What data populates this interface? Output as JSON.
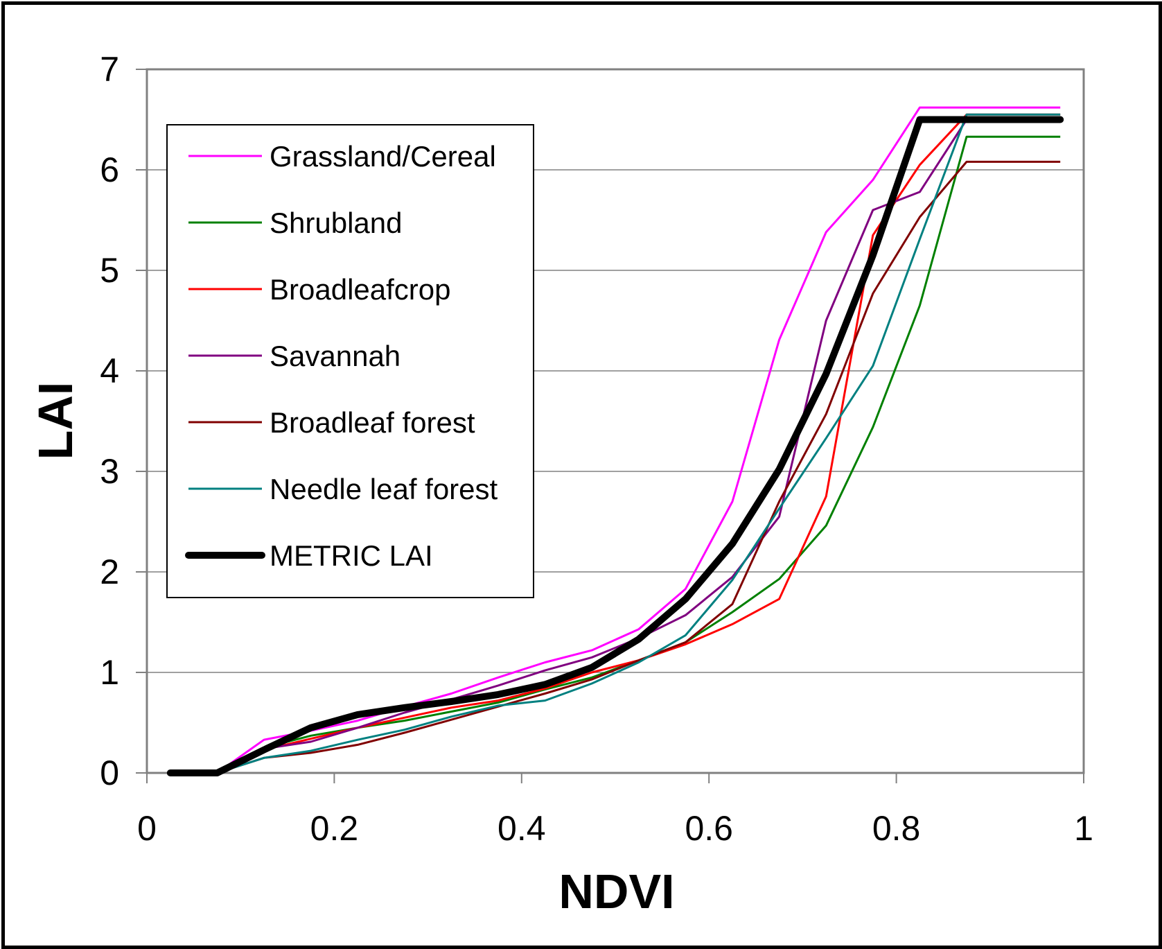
{
  "chart_data": {
    "type": "line",
    "title": "",
    "xlabel": "NDVI",
    "ylabel": "LAI",
    "xlim": [
      0,
      1
    ],
    "ylim": [
      0,
      7
    ],
    "xticks": [
      "0",
      "0.2",
      "0.4",
      "0.6",
      "0.8",
      "1"
    ],
    "yticks": [
      "0",
      "1",
      "2",
      "3",
      "4",
      "5",
      "6",
      "7"
    ],
    "grid": "horizontal",
    "legend_position": "top-left",
    "x": [
      0.025,
      0.075,
      0.125,
      0.175,
      0.225,
      0.275,
      0.325,
      0.375,
      0.425,
      0.475,
      0.525,
      0.575,
      0.625,
      0.675,
      0.725,
      0.775,
      0.825,
      0.875,
      0.925,
      0.975
    ],
    "series": [
      {
        "name": "Grassland/Cereal",
        "color": "#ff00ff",
        "width": 3,
        "values": [
          0,
          0,
          0.33,
          0.42,
          0.52,
          0.66,
          0.79,
          0.95,
          1.1,
          1.22,
          1.43,
          1.83,
          2.7,
          4.31,
          5.38,
          5.9,
          6.62,
          6.62,
          6.62,
          6.62
        ]
      },
      {
        "name": "Shrubland",
        "color": "#008000",
        "width": 3,
        "values": [
          0,
          0,
          0.25,
          0.37,
          0.45,
          0.52,
          0.61,
          0.7,
          0.83,
          0.95,
          1.12,
          1.3,
          1.6,
          1.93,
          2.46,
          3.44,
          4.65,
          6.33,
          6.33,
          6.33
        ]
      },
      {
        "name": "Broadleafcrop",
        "color": "#ff0000",
        "width": 3,
        "values": [
          0,
          0,
          0.23,
          0.34,
          0.45,
          0.55,
          0.65,
          0.72,
          0.84,
          1.0,
          1.12,
          1.28,
          1.48,
          1.73,
          2.75,
          5.35,
          6.05,
          6.55,
          6.55,
          6.55
        ]
      },
      {
        "name": "Savannah",
        "color": "#800080",
        "width": 3,
        "values": [
          0,
          0,
          0.24,
          0.31,
          0.45,
          0.6,
          0.73,
          0.87,
          1.02,
          1.15,
          1.34,
          1.57,
          1.95,
          2.55,
          4.5,
          5.6,
          5.78,
          6.5,
          6.5,
          6.5
        ]
      },
      {
        "name": "Broadleaf forest",
        "color": "#800000",
        "width": 3,
        "values": [
          0,
          0,
          0.15,
          0.2,
          0.28,
          0.4,
          0.53,
          0.66,
          0.79,
          0.93,
          1.12,
          1.3,
          1.68,
          2.7,
          3.57,
          4.77,
          5.53,
          6.08,
          6.08,
          6.08
        ]
      },
      {
        "name": "Needle leaf forest",
        "color": "#008080",
        "width": 3,
        "values": [
          0,
          0,
          0.15,
          0.22,
          0.33,
          0.43,
          0.56,
          0.67,
          0.72,
          0.89,
          1.1,
          1.37,
          1.92,
          2.63,
          3.33,
          4.05,
          5.31,
          6.55,
          6.55,
          6.55
        ]
      },
      {
        "name": "METRIC LAI",
        "color": "#000000",
        "width": 10,
        "values": [
          0,
          0,
          0.23,
          0.45,
          0.58,
          0.65,
          0.71,
          0.78,
          0.88,
          1.05,
          1.33,
          1.73,
          2.28,
          3.02,
          3.97,
          5.15,
          6.5,
          6.5,
          6.5,
          6.5
        ]
      }
    ]
  }
}
